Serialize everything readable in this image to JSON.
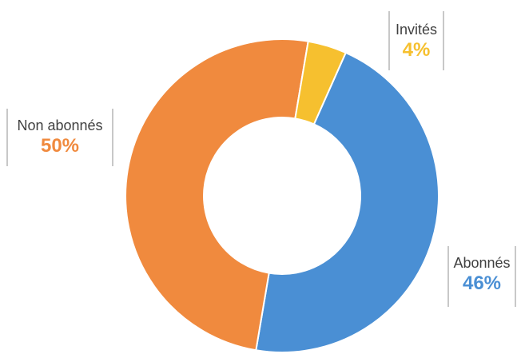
{
  "chart_data": {
    "type": "pie",
    "variant": "donut",
    "slices": [
      {
        "label": "Abonnés",
        "value": 46,
        "display": "46%",
        "color": "#4a8fd4"
      },
      {
        "label": "Non abonnés",
        "value": 50,
        "display": "50%",
        "color": "#f08a3e"
      },
      {
        "label": "Invités",
        "value": 4,
        "display": "4%",
        "color": "#f6c02f"
      }
    ],
    "start_angle_deg": 24,
    "direction": "clockwise",
    "legend": "none"
  }
}
